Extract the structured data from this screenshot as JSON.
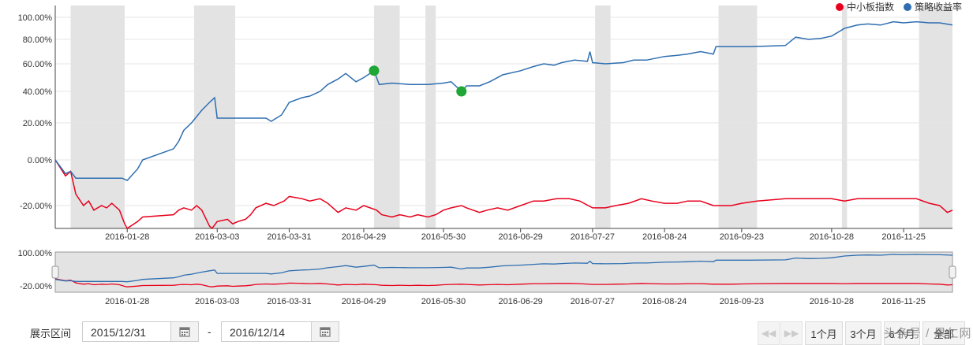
{
  "legend": [
    {
      "label": "中小板指数",
      "color": "#e8001c"
    },
    {
      "label": "策略收益率",
      "color": "#2e6eb0"
    }
  ],
  "chart_data": {
    "type": "line",
    "title": "",
    "xlabel": "",
    "ylabel": "",
    "ylim": [
      -30,
      100
    ],
    "y_ticks": [
      "100.00%",
      "80.00%",
      "60.00%",
      "40.00%",
      "20.00%",
      "0.00%",
      "-20.00%"
    ],
    "x_ticks": [
      "2016-01-28",
      "2016-03-03",
      "2016-03-31",
      "2016-04-29",
      "2016-05-30",
      "2016-06-29",
      "2016-07-27",
      "2016-08-24",
      "2016-09-23",
      "2016-10-28",
      "2016-11-25"
    ],
    "x_range": [
      "2015-12-31",
      "2016-12-14"
    ],
    "shaded_periods": [
      [
        "2016-01-06",
        "2016-01-27"
      ],
      [
        "2016-02-23",
        "2016-03-10"
      ],
      [
        "2016-05-03",
        "2016-05-13"
      ],
      [
        "2016-05-23",
        "2016-05-27"
      ],
      [
        "2016-07-28",
        "2016-08-03"
      ],
      [
        "2016-09-14",
        "2016-09-29"
      ],
      [
        "2016-11-01",
        "2016-11-03"
      ],
      [
        "2016-12-01",
        "2016-12-14"
      ]
    ],
    "series": [
      {
        "name": "中小板指数",
        "color": "#e8001c",
        "points": [
          [
            "2015-12-31",
            0
          ],
          [
            "2016-01-04",
            -7
          ],
          [
            "2016-01-06",
            -5
          ],
          [
            "2016-01-08",
            -15
          ],
          [
            "2016-01-11",
            -20
          ],
          [
            "2016-01-13",
            -18
          ],
          [
            "2016-01-15",
            -22
          ],
          [
            "2016-01-18",
            -20
          ],
          [
            "2016-01-20",
            -21
          ],
          [
            "2016-01-22",
            -19
          ],
          [
            "2016-01-25",
            -22
          ],
          [
            "2016-01-27",
            -28
          ],
          [
            "2016-01-28",
            -30
          ],
          [
            "2016-02-01",
            -27
          ],
          [
            "2016-02-03",
            -25
          ],
          [
            "2016-02-15",
            -24
          ],
          [
            "2016-02-17",
            -22
          ],
          [
            "2016-02-19",
            -21
          ],
          [
            "2016-02-22",
            -22
          ],
          [
            "2016-02-24",
            -20
          ],
          [
            "2016-02-26",
            -22
          ],
          [
            "2016-02-29",
            -29
          ],
          [
            "2016-03-01",
            -30
          ],
          [
            "2016-03-03",
            -27
          ],
          [
            "2016-03-07",
            -26
          ],
          [
            "2016-03-09",
            -28
          ],
          [
            "2016-03-11",
            -27
          ],
          [
            "2016-03-14",
            -26
          ],
          [
            "2016-03-16",
            -24
          ],
          [
            "2016-03-18",
            -21
          ],
          [
            "2016-03-22",
            -19
          ],
          [
            "2016-03-25",
            -20
          ],
          [
            "2016-03-29",
            -18
          ],
          [
            "2016-03-31",
            -16
          ],
          [
            "2016-04-05",
            -17
          ],
          [
            "2016-04-08",
            -18
          ],
          [
            "2016-04-12",
            -17
          ],
          [
            "2016-04-15",
            -19
          ],
          [
            "2016-04-19",
            -23
          ],
          [
            "2016-04-22",
            -21
          ],
          [
            "2016-04-26",
            -22
          ],
          [
            "2016-04-29",
            -20
          ],
          [
            "2016-05-04",
            -22
          ],
          [
            "2016-05-06",
            -24
          ],
          [
            "2016-05-10",
            -25
          ],
          [
            "2016-05-13",
            -24
          ],
          [
            "2016-05-17",
            -25
          ],
          [
            "2016-05-20",
            -24
          ],
          [
            "2016-05-24",
            -25
          ],
          [
            "2016-05-27",
            -24
          ],
          [
            "2016-05-30",
            -22
          ],
          [
            "2016-06-02",
            -21
          ],
          [
            "2016-06-06",
            -20
          ],
          [
            "2016-06-08",
            -21
          ],
          [
            "2016-06-13",
            -23
          ],
          [
            "2016-06-16",
            -22
          ],
          [
            "2016-06-20",
            -21
          ],
          [
            "2016-06-24",
            -22
          ],
          [
            "2016-06-29",
            -20
          ],
          [
            "2016-07-04",
            -18
          ],
          [
            "2016-07-08",
            -18
          ],
          [
            "2016-07-13",
            -17
          ],
          [
            "2016-07-18",
            -17
          ],
          [
            "2016-07-22",
            -18
          ],
          [
            "2016-07-27",
            -21
          ],
          [
            "2016-08-01",
            -21
          ],
          [
            "2016-08-05",
            -20
          ],
          [
            "2016-08-10",
            -19
          ],
          [
            "2016-08-15",
            -17
          ],
          [
            "2016-08-19",
            -18
          ],
          [
            "2016-08-24",
            -19
          ],
          [
            "2016-08-29",
            -19
          ],
          [
            "2016-09-02",
            -18
          ],
          [
            "2016-09-07",
            -18
          ],
          [
            "2016-09-12",
            -20
          ],
          [
            "2016-09-19",
            -20
          ],
          [
            "2016-09-23",
            -19
          ],
          [
            "2016-09-29",
            -18
          ],
          [
            "2016-10-10",
            -17
          ],
          [
            "2016-10-14",
            -17
          ],
          [
            "2016-10-19",
            -17
          ],
          [
            "2016-10-24",
            -17
          ],
          [
            "2016-10-28",
            -17
          ],
          [
            "2016-11-02",
            -18
          ],
          [
            "2016-11-07",
            -17
          ],
          [
            "2016-11-11",
            -17
          ],
          [
            "2016-11-16",
            -17
          ],
          [
            "2016-11-21",
            -17
          ],
          [
            "2016-11-25",
            -17
          ],
          [
            "2016-11-30",
            -17
          ],
          [
            "2016-12-05",
            -19
          ],
          [
            "2016-12-09",
            -20
          ],
          [
            "2016-12-12",
            -23
          ],
          [
            "2016-12-14",
            -22
          ]
        ]
      },
      {
        "name": "策略收益率",
        "color": "#2e6eb0",
        "points": [
          [
            "2015-12-31",
            0
          ],
          [
            "2016-01-04",
            -6
          ],
          [
            "2016-01-06",
            -5
          ],
          [
            "2016-01-08",
            -8
          ],
          [
            "2016-01-12",
            -8
          ],
          [
            "2016-01-20",
            -8
          ],
          [
            "2016-01-26",
            -8
          ],
          [
            "2016-01-28",
            -9
          ],
          [
            "2016-02-01",
            -4
          ],
          [
            "2016-02-03",
            0
          ],
          [
            "2016-02-15",
            6
          ],
          [
            "2016-02-17",
            10
          ],
          [
            "2016-02-19",
            16
          ],
          [
            "2016-02-22",
            20
          ],
          [
            "2016-02-24",
            24
          ],
          [
            "2016-02-26",
            28
          ],
          [
            "2016-02-29",
            33
          ],
          [
            "2016-03-02",
            36
          ],
          [
            "2016-03-03",
            23
          ],
          [
            "2016-03-08",
            23
          ],
          [
            "2016-03-15",
            23
          ],
          [
            "2016-03-22",
            23
          ],
          [
            "2016-03-24",
            21
          ],
          [
            "2016-03-28",
            25
          ],
          [
            "2016-03-31",
            33
          ],
          [
            "2016-04-05",
            36
          ],
          [
            "2016-04-08",
            37
          ],
          [
            "2016-04-12",
            40
          ],
          [
            "2016-04-15",
            45
          ],
          [
            "2016-04-19",
            49
          ],
          [
            "2016-04-22",
            53
          ],
          [
            "2016-04-26",
            47
          ],
          [
            "2016-04-29",
            50
          ],
          [
            "2016-05-03",
            55
          ],
          [
            "2016-05-05",
            45
          ],
          [
            "2016-05-10",
            46
          ],
          [
            "2016-05-17",
            45
          ],
          [
            "2016-05-24",
            45
          ],
          [
            "2016-05-30",
            46
          ],
          [
            "2016-06-02",
            47
          ],
          [
            "2016-06-06",
            40
          ],
          [
            "2016-06-08",
            44
          ],
          [
            "2016-06-13",
            44
          ],
          [
            "2016-06-17",
            47
          ],
          [
            "2016-06-22",
            52
          ],
          [
            "2016-06-29",
            55
          ],
          [
            "2016-07-04",
            58
          ],
          [
            "2016-07-08",
            60
          ],
          [
            "2016-07-12",
            59
          ],
          [
            "2016-07-15",
            61
          ],
          [
            "2016-07-20",
            63
          ],
          [
            "2016-07-25",
            62
          ],
          [
            "2016-07-26",
            70
          ],
          [
            "2016-07-27",
            61
          ],
          [
            "2016-08-01",
            60
          ],
          [
            "2016-08-08",
            61
          ],
          [
            "2016-08-12",
            63
          ],
          [
            "2016-08-17",
            63
          ],
          [
            "2016-08-24",
            66
          ],
          [
            "2016-08-29",
            67
          ],
          [
            "2016-09-02",
            68
          ],
          [
            "2016-09-07",
            70
          ],
          [
            "2016-09-12",
            68
          ],
          [
            "2016-09-13",
            74
          ],
          [
            "2016-09-19",
            74
          ],
          [
            "2016-09-26",
            74
          ],
          [
            "2016-10-10",
            75
          ],
          [
            "2016-10-14",
            82
          ],
          [
            "2016-10-19",
            80
          ],
          [
            "2016-10-24",
            81
          ],
          [
            "2016-10-28",
            83
          ],
          [
            "2016-11-02",
            90
          ],
          [
            "2016-11-07",
            93
          ],
          [
            "2016-11-11",
            94
          ],
          [
            "2016-11-16",
            93
          ],
          [
            "2016-11-21",
            96
          ],
          [
            "2016-11-25",
            95
          ],
          [
            "2016-11-30",
            96
          ],
          [
            "2016-12-05",
            95
          ],
          [
            "2016-12-09",
            95
          ],
          [
            "2016-12-14",
            93
          ]
        ]
      }
    ],
    "markers": [
      {
        "date": "2016-05-03",
        "value": 55,
        "color": "#1fa636"
      },
      {
        "date": "2016-06-06",
        "value": 40,
        "color": "#1fa636"
      }
    ]
  },
  "navigator": {
    "y_ticks": [
      "100.00%",
      "-20.00%"
    ]
  },
  "controls": {
    "range_label": "展示区间",
    "start_date": "2015/12/31",
    "end_date": "2016/12/14",
    "dash": "-",
    "prev_label": "◀◀",
    "next_label": "▶▶",
    "periods": [
      "1个月",
      "3个月",
      "6个月",
      "全部"
    ]
  },
  "watermark": "头条号 / 果仁网"
}
